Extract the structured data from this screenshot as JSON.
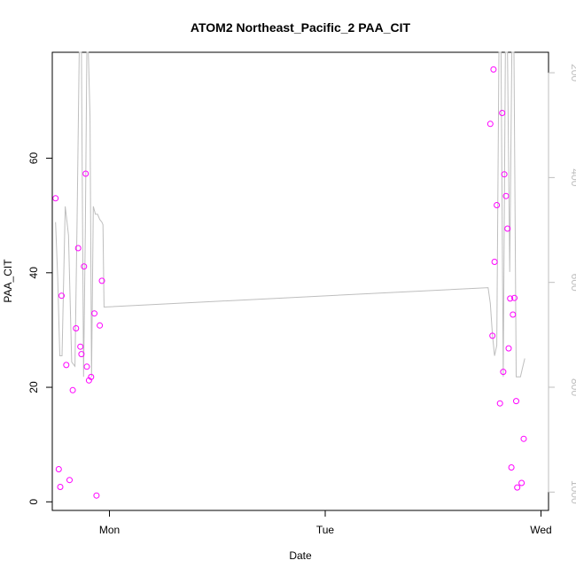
{
  "chart_data": {
    "type": "scatter",
    "title": "ATOM2 Northeast_Pacific_2 PAA_CIT",
    "xlabel": "Date",
    "ylabel": "PAA_CIT",
    "xlim": [
      -0.265,
      2.035
    ],
    "ylim": [
      -1.5,
      78.5
    ],
    "y2lim": [
      1035,
      161
    ],
    "x_ticks": [
      {
        "value": 0,
        "label": "Mon"
      },
      {
        "value": 1,
        "label": "Tue"
      },
      {
        "value": 2,
        "label": "Wed"
      }
    ],
    "y_ticks": [
      0,
      20,
      40,
      60
    ],
    "y2_ticks": [
      200,
      400,
      600,
      800,
      1000
    ],
    "grid": false,
    "legend": "none",
    "colors": {
      "points": "#ff00ff",
      "altitude_line": "#bebebe",
      "axis": "#000000",
      "secondary_axis": "#bebebe"
    },
    "series": [
      {
        "type": "scatter",
        "x": [
          -0.25,
          -0.235,
          -0.228,
          -0.222,
          -0.2,
          -0.185,
          -0.17,
          -0.155,
          -0.145,
          -0.135,
          -0.13,
          -0.118,
          -0.11,
          -0.105,
          -0.095,
          -0.085,
          -0.07,
          -0.06,
          -0.045,
          -0.035,
          1.765,
          1.775,
          1.78,
          1.785,
          1.795,
          1.81,
          1.82,
          1.825,
          1.83,
          1.838,
          1.845,
          1.85,
          1.857,
          1.863,
          1.87,
          1.877,
          1.885,
          1.89,
          1.91,
          1.92
        ],
        "y": [
          53.0,
          5.7,
          2.6,
          36.0,
          23.9,
          3.8,
          19.5,
          30.3,
          44.3,
          27.1,
          25.8,
          41.1,
          57.3,
          23.6,
          21.2,
          21.8,
          32.9,
          1.1,
          30.8,
          38.6,
          66.0,
          29.0,
          75.5,
          41.9,
          51.8,
          17.2,
          67.9,
          22.7,
          57.2,
          53.4,
          47.7,
          26.8,
          35.5,
          6.0,
          32.7,
          35.6,
          17.6,
          2.5,
          3.3,
          11.0
        ]
      },
      {
        "type": "line",
        "axis": "secondary",
        "x": [
          -0.25,
          -0.24,
          -0.23,
          -0.22,
          -0.205,
          -0.19,
          -0.175,
          -0.16,
          -0.15,
          -0.14,
          -0.13,
          -0.12,
          -0.112,
          -0.105,
          -0.098,
          -0.09,
          -0.083,
          -0.075,
          -0.065,
          -0.055,
          -0.045,
          -0.035,
          -0.03,
          -0.025,
          1.755,
          1.765,
          1.775,
          1.785,
          1.795,
          1.805,
          1.815,
          1.825,
          1.835,
          1.845,
          1.855,
          1.865,
          1.875,
          1.885,
          1.895,
          1.905,
          1.915,
          1.925
        ],
        "y": [
          485,
          590,
          740,
          740,
          455,
          510,
          752,
          760,
          480,
          160,
          160,
          780,
          500,
          160,
          160,
          285,
          780,
          455,
          470,
          470,
          480,
          485,
          490,
          647,
          610,
          640,
          700,
          740,
          720,
          160,
          160,
          780,
          160,
          160,
          580,
          160,
          160,
          780,
          780,
          780,
          762,
          745
        ]
      }
    ]
  }
}
